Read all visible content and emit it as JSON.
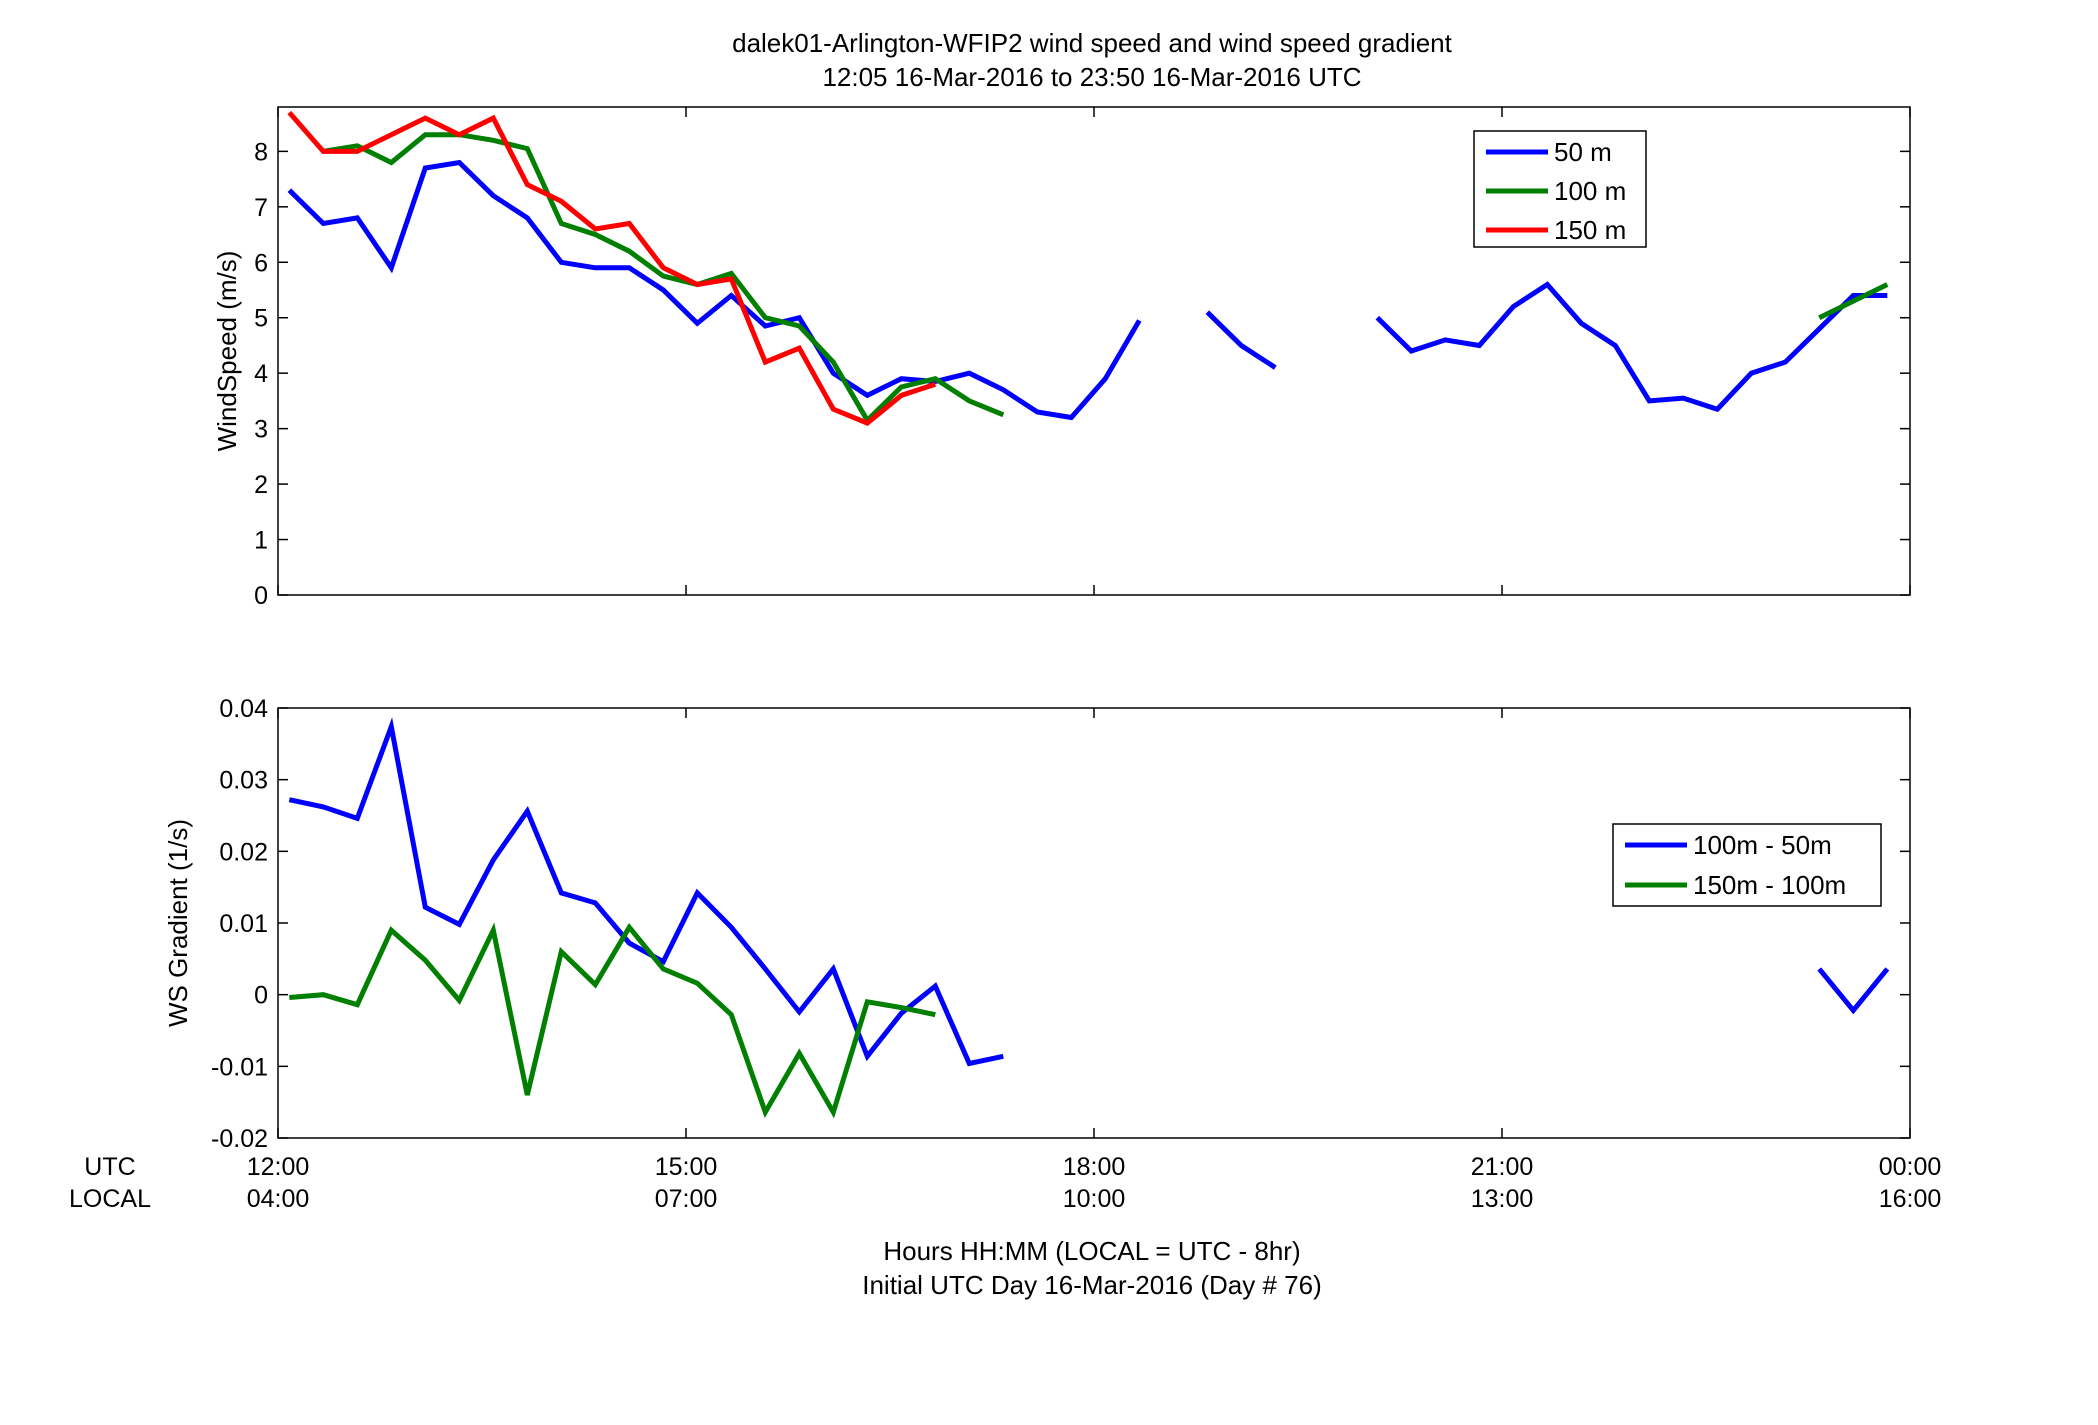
{
  "titles": {
    "line1": "dalek01-Arlington-WFIP2  wind speed and wind speed gradient",
    "line2": "12:05 16-Mar-2016 to 23:50 16-Mar-2016  UTC"
  },
  "xaxis": {
    "row_label_utc": "UTC",
    "row_label_local": "LOCAL",
    "utc_ticks": [
      "12:00",
      "15:00",
      "18:00",
      "21:00",
      "00:00"
    ],
    "local_ticks": [
      "04:00",
      "07:00",
      "10:00",
      "13:00",
      "16:00"
    ],
    "xlabel_line1": "Hours HH:MM  (LOCAL = UTC - 8hr)",
    "xlabel_line2": "Initial UTC Day 16-Mar-2016 (Day # 76)"
  },
  "colors": {
    "blue": "#0000ff",
    "green": "#007f00",
    "red": "#ff0000"
  },
  "chart_data": [
    {
      "type": "line",
      "ylabel": "WindSpeed (m/s)",
      "xlim": [
        12.0,
        24.0
      ],
      "ylim": [
        0,
        8.8
      ],
      "yticks": [
        "0",
        "1",
        "2",
        "3",
        "4",
        "5",
        "6",
        "7",
        "8"
      ],
      "legend_position": "top-right",
      "series": [
        {
          "name": "50 m",
          "color": "#0000ff",
          "x": [
            12.083,
            12.333,
            12.583,
            12.833,
            13.083,
            13.333,
            13.583,
            13.833,
            14.083,
            14.333,
            14.583,
            14.833,
            15.083,
            15.333,
            15.583,
            15.833,
            16.083,
            16.333,
            16.583,
            16.833,
            17.083,
            17.333,
            17.583,
            17.833,
            18.083,
            18.333,
            null,
            18.833,
            19.083,
            19.333,
            null,
            20.083,
            20.333,
            20.583,
            20.833,
            21.083,
            21.333,
            21.583,
            21.833,
            22.083,
            22.333,
            22.583,
            22.833,
            23.083,
            23.333,
            23.583,
            23.833
          ],
          "y": [
            7.3,
            6.7,
            6.8,
            5.9,
            7.7,
            7.8,
            7.2,
            6.8,
            6.0,
            5.9,
            5.9,
            5.5,
            4.9,
            5.4,
            4.85,
            5.0,
            4.0,
            3.6,
            3.9,
            3.85,
            4.0,
            3.7,
            3.3,
            3.2,
            3.9,
            4.95,
            null,
            5.1,
            4.5,
            4.1,
            null,
            5.0,
            4.4,
            4.6,
            4.5,
            5.2,
            5.6,
            4.9,
            4.5,
            3.5,
            3.55,
            3.35,
            4.0,
            4.2,
            4.8,
            5.4,
            5.4
          ]
        },
        {
          "name": "100 m",
          "color": "#007f00",
          "x": [
            12.333,
            12.583,
            12.833,
            13.083,
            13.333,
            13.583,
            13.833,
            14.083,
            14.333,
            14.583,
            14.833,
            15.083,
            15.333,
            15.583,
            15.833,
            16.083,
            16.333,
            16.583,
            16.833,
            17.083,
            17.333,
            null,
            23.333,
            23.583,
            23.833
          ],
          "y": [
            8.0,
            8.1,
            7.8,
            8.3,
            8.3,
            8.2,
            8.05,
            6.7,
            6.5,
            6.2,
            5.75,
            5.6,
            5.8,
            5.0,
            4.85,
            4.2,
            3.15,
            3.75,
            3.9,
            3.5,
            3.25,
            null,
            5.0,
            5.3,
            5.6
          ]
        },
        {
          "name": "150 m",
          "color": "#ff0000",
          "x": [
            12.083,
            12.333,
            12.583,
            12.833,
            13.083,
            13.333,
            13.583,
            13.833,
            14.083,
            14.333,
            14.583,
            14.833,
            15.083,
            15.333,
            15.583,
            15.833,
            16.083,
            16.333,
            16.583,
            16.833
          ],
          "y": [
            8.7,
            8.0,
            8.0,
            8.3,
            8.6,
            8.3,
            8.6,
            7.4,
            7.1,
            6.6,
            6.7,
            5.9,
            5.6,
            5.7,
            4.2,
            4.45,
            3.35,
            3.1,
            3.6,
            3.8
          ]
        }
      ]
    },
    {
      "type": "line",
      "ylabel": "WS Gradient (1/s)",
      "xlim": [
        12.0,
        24.0
      ],
      "ylim": [
        -0.02,
        0.04
      ],
      "yticks": [
        "-0.02",
        "-0.01",
        "0",
        "0.01",
        "0.02",
        "0.03",
        "0.04"
      ],
      "legend_position": "right",
      "series": [
        {
          "name": "100m - 50m",
          "color": "#0000ff",
          "x": [
            12.083,
            12.333,
            12.583,
            12.833,
            13.083,
            13.333,
            13.583,
            13.833,
            14.083,
            14.333,
            14.583,
            14.833,
            15.083,
            15.333,
            15.583,
            15.833,
            16.083,
            16.333,
            16.583,
            16.833,
            17.083,
            17.333,
            null,
            23.333,
            23.583,
            23.833
          ],
          "y": [
            0.0272,
            0.0262,
            0.0246,
            0.0374,
            0.0122,
            0.0098,
            0.0188,
            0.0256,
            0.0142,
            0.0128,
            0.0072,
            0.0046,
            0.0142,
            0.0094,
            0.0036,
            -0.0024,
            0.0036,
            -0.0086,
            -0.0026,
            0.0012,
            -0.0096,
            -0.0086,
            null,
            0.0036,
            -0.0022,
            0.0036
          ]
        },
        {
          "name": "150m - 100m",
          "color": "#007f00",
          "x": [
            12.083,
            12.333,
            12.583,
            12.833,
            13.083,
            13.333,
            13.583,
            13.833,
            14.083,
            14.333,
            14.583,
            14.833,
            15.083,
            15.333,
            15.583,
            15.833,
            16.083,
            16.333,
            16.583,
            16.833
          ],
          "y": [
            -0.0004,
            0.0,
            -0.0014,
            0.009,
            0.0048,
            -0.0008,
            0.009,
            -0.014,
            0.006,
            0.0014,
            0.0094,
            0.0036,
            0.0016,
            -0.0028,
            -0.0164,
            -0.0082,
            -0.0164,
            -0.001,
            -0.0018,
            -0.0028
          ]
        }
      ]
    }
  ]
}
